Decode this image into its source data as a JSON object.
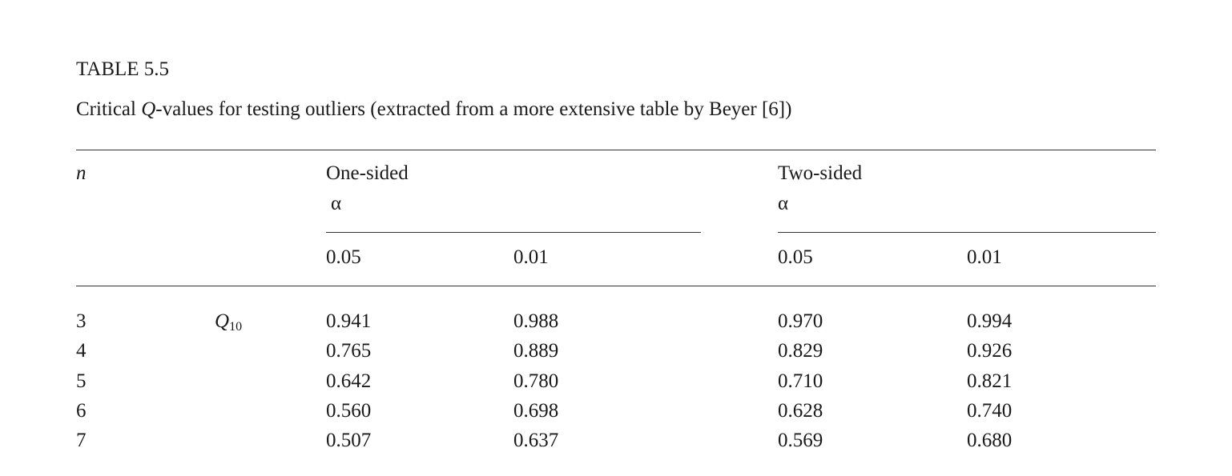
{
  "table": {
    "title": "TABLE 5.5",
    "caption": [
      "Critical ",
      "Q",
      "-values for testing outliers (extracted from a more extensive table by Beyer [6])"
    ],
    "header": {
      "n": "n",
      "groups": [
        {
          "label": "One-sided",
          "alpha": "α",
          "levels": [
            "0.05",
            "0.01"
          ]
        },
        {
          "label": "Two-sided",
          "alpha": "α",
          "levels": [
            "0.05",
            "0.01"
          ]
        }
      ]
    },
    "statistic": {
      "symbol": "Q",
      "subscript": "10"
    },
    "rows": [
      [
        "3",
        "0.941",
        "0.988",
        "0.970",
        "0.994"
      ],
      [
        "4",
        "0.765",
        "0.889",
        "0.829",
        "0.926"
      ],
      [
        "5",
        "0.642",
        "0.780",
        "0.710",
        "0.821"
      ],
      [
        "6",
        "0.560",
        "0.698",
        "0.628",
        "0.740"
      ],
      [
        "7",
        "0.507",
        "0.637",
        "0.569",
        "0.680"
      ]
    ]
  }
}
